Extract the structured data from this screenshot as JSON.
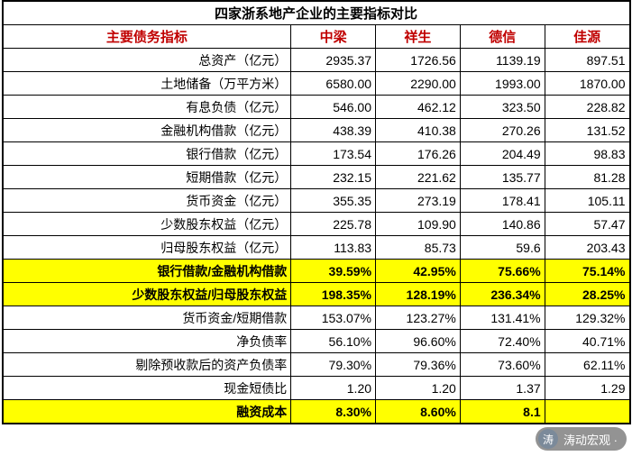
{
  "table": {
    "title": "四家浙系地产企业的主要指标对比",
    "header": {
      "label": "主要债务指标",
      "cols": [
        "中梁",
        "祥生",
        "德信",
        "佳源"
      ]
    },
    "rows": [
      {
        "label": "总资产（亿元）",
        "values": [
          "2935.37",
          "1726.56",
          "1139.19",
          "897.51"
        ],
        "hl": false
      },
      {
        "label": "土地储备（万平方米）",
        "values": [
          "6580.00",
          "2290.00",
          "1993.00",
          "1870.00"
        ],
        "hl": false
      },
      {
        "label": "有息负债（亿元）",
        "values": [
          "546.00",
          "462.12",
          "323.50",
          "228.82"
        ],
        "hl": false
      },
      {
        "label": "金融机构借款（亿元）",
        "values": [
          "438.39",
          "410.38",
          "270.26",
          "131.52"
        ],
        "hl": false
      },
      {
        "label": "银行借款（亿元）",
        "values": [
          "173.54",
          "176.26",
          "204.49",
          "98.83"
        ],
        "hl": false
      },
      {
        "label": "短期借款（亿元）",
        "values": [
          "232.15",
          "221.62",
          "135.77",
          "81.28"
        ],
        "hl": false
      },
      {
        "label": "货币资金（亿元）",
        "values": [
          "355.35",
          "273.19",
          "178.41",
          "105.11"
        ],
        "hl": false
      },
      {
        "label": "少数股东权益（亿元）",
        "values": [
          "225.78",
          "109.90",
          "140.86",
          "57.47"
        ],
        "hl": false
      },
      {
        "label": "归母股东权益（亿元）",
        "values": [
          "113.83",
          "85.73",
          "59.6",
          "203.43"
        ],
        "hl": false
      },
      {
        "label": "银行借款/金融机构借款",
        "values": [
          "39.59%",
          "42.95%",
          "75.66%",
          "75.14%"
        ],
        "hl": true
      },
      {
        "label": "少数股东权益/归母股东权益",
        "values": [
          "198.35%",
          "128.19%",
          "236.34%",
          "28.25%"
        ],
        "hl": true
      },
      {
        "label": "货币资金/短期借款",
        "values": [
          "153.07%",
          "123.27%",
          "131.41%",
          "129.32%"
        ],
        "hl": false
      },
      {
        "label": "净负债率",
        "values": [
          "56.10%",
          "96.60%",
          "72.40%",
          "40.71%"
        ],
        "hl": false
      },
      {
        "label": "剔除预收款后的资产负债率",
        "values": [
          "79.30%",
          "79.36%",
          "73.60%",
          "62.11%"
        ],
        "hl": false
      },
      {
        "label": "现金短债比",
        "values": [
          "1.20",
          "1.20",
          "1.37",
          "1.29"
        ],
        "hl": false
      },
      {
        "label": "融资成本",
        "values": [
          "8.30%",
          "8.60%",
          "8.1",
          ""
        ],
        "hl": true
      }
    ]
  },
  "watermark": {
    "icon": "涛",
    "text": "涛动宏观 ·"
  },
  "styles": {
    "highlight_bg": "#ffff00",
    "header_color": "#c00000",
    "border_color": "#000000",
    "background": "#ffffff"
  }
}
